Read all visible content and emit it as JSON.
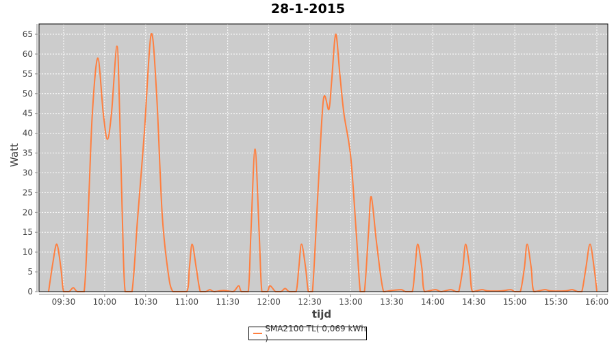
{
  "chart_data": {
    "type": "line",
    "title": "28-1-2015",
    "xlabel": "tijd",
    "ylabel": "Watt",
    "xlim": [
      "09:12",
      "16:08"
    ],
    "ylim": [
      0,
      67.6
    ],
    "yticks": [
      0,
      5,
      10,
      15,
      20,
      25,
      30,
      35,
      40,
      45,
      50,
      55,
      60,
      65
    ],
    "xticks": [
      "09:30",
      "10:00",
      "10:30",
      "11:00",
      "11:30",
      "12:00",
      "12:30",
      "13:00",
      "13:30",
      "14:00",
      "14:30",
      "15:00",
      "15:30",
      "16:00"
    ],
    "grid": true,
    "legend_position": "bottom",
    "series": [
      {
        "name": "SMA2100 TL( 0,069 kWh )",
        "color": "#ff7f3f",
        "points": [
          [
            "09:19",
            0
          ],
          [
            "09:22",
            7
          ],
          [
            "09:25",
            12
          ],
          [
            "09:28",
            6
          ],
          [
            "09:30",
            0
          ],
          [
            "09:34",
            0
          ],
          [
            "09:37",
            1
          ],
          [
            "09:40",
            0
          ],
          [
            "09:45",
            0
          ],
          [
            "09:48",
            20
          ],
          [
            "09:51",
            45
          ],
          [
            "09:55",
            59
          ],
          [
            "09:59",
            45
          ],
          [
            "10:02",
            38.5
          ],
          [
            "10:05",
            45
          ],
          [
            "10:09",
            62
          ],
          [
            "10:11",
            45
          ],
          [
            "10:13",
            18
          ],
          [
            "10:15",
            0
          ],
          [
            "10:20",
            0
          ],
          [
            "10:24",
            18
          ],
          [
            "10:29",
            40
          ],
          [
            "10:34",
            65
          ],
          [
            "10:38",
            50
          ],
          [
            "10:42",
            20
          ],
          [
            "10:46",
            6
          ],
          [
            "10:50",
            0
          ],
          [
            "11:00",
            0
          ],
          [
            "11:02",
            6
          ],
          [
            "11:04",
            12
          ],
          [
            "11:07",
            6
          ],
          [
            "11:10",
            0
          ],
          [
            "11:14",
            0
          ],
          [
            "11:17",
            0.5
          ],
          [
            "11:20",
            0
          ],
          [
            "11:27",
            0.3
          ],
          [
            "11:34",
            0
          ],
          [
            "11:38",
            1.5
          ],
          [
            "11:40",
            0
          ],
          [
            "11:45",
            0
          ],
          [
            "11:47",
            15
          ],
          [
            "11:50",
            36
          ],
          [
            "11:53",
            15
          ],
          [
            "11:55",
            0
          ],
          [
            "11:59",
            0
          ],
          [
            "12:01",
            1.5
          ],
          [
            "12:05",
            0
          ],
          [
            "12:09",
            0
          ],
          [
            "12:12",
            0.8
          ],
          [
            "12:15",
            0
          ],
          [
            "12:20",
            0
          ],
          [
            "12:22",
            6
          ],
          [
            "12:24",
            12
          ],
          [
            "12:27",
            6
          ],
          [
            "12:29",
            0
          ],
          [
            "12:32",
            0
          ],
          [
            "12:36",
            25
          ],
          [
            "12:40",
            48.5
          ],
          [
            "12:44",
            46
          ],
          [
            "12:46",
            53
          ],
          [
            "12:49",
            65
          ],
          [
            "12:52",
            55
          ],
          [
            "12:55",
            45
          ],
          [
            "13:00",
            34
          ],
          [
            "13:04",
            15
          ],
          [
            "13:07",
            0
          ],
          [
            "13:10",
            0
          ],
          [
            "13:13",
            15
          ],
          [
            "13:15",
            24
          ],
          [
            "13:19",
            12
          ],
          [
            "13:24",
            0
          ],
          [
            "13:30",
            0.3
          ],
          [
            "13:37",
            0.5
          ],
          [
            "13:40",
            0
          ],
          [
            "13:45",
            0
          ],
          [
            "13:47",
            6
          ],
          [
            "13:49",
            12
          ],
          [
            "13:52",
            6
          ],
          [
            "13:54",
            0
          ],
          [
            "14:02",
            0.5
          ],
          [
            "14:06",
            0
          ],
          [
            "14:13",
            0.5
          ],
          [
            "14:17",
            0
          ],
          [
            "14:19",
            0
          ],
          [
            "14:22",
            6
          ],
          [
            "14:24",
            12
          ],
          [
            "14:27",
            6
          ],
          [
            "14:29",
            0
          ],
          [
            "14:36",
            0.5
          ],
          [
            "14:40",
            0.2
          ],
          [
            "14:50",
            0.2
          ],
          [
            "14:57",
            0.5
          ],
          [
            "15:00",
            0
          ],
          [
            "15:04",
            0
          ],
          [
            "15:07",
            6
          ],
          [
            "15:09",
            12
          ],
          [
            "15:12",
            6
          ],
          [
            "15:14",
            0
          ],
          [
            "15:22",
            0.5
          ],
          [
            "15:26",
            0.2
          ],
          [
            "15:37",
            0.2
          ],
          [
            "15:42",
            0.5
          ],
          [
            "15:46",
            0
          ],
          [
            "15:49",
            0
          ],
          [
            "15:52",
            6
          ],
          [
            "15:55",
            12
          ],
          [
            "15:58",
            6
          ],
          [
            "16:00",
            0
          ]
        ]
      }
    ]
  }
}
